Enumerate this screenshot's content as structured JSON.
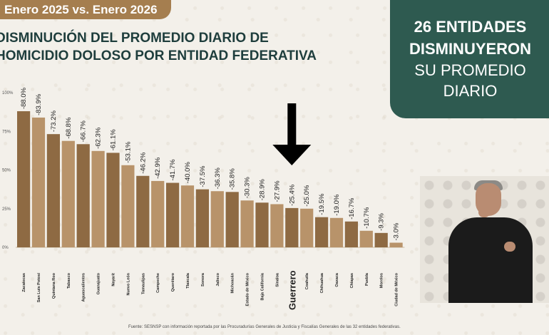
{
  "header": {
    "date_range": "Enero 2025 vs. Enero 2026",
    "title_line1": "DISMINUCIÓN DEL PROMEDIO DIARIO DE",
    "title_line2": "HOMICIDIO DOLOSO POR ENTIDAD FEDERATIVA"
  },
  "callout": {
    "line1": "26 ENTIDADES",
    "line2": "DISMINUYERON",
    "line3": "SU PROMEDIO",
    "line4": "DIARIO"
  },
  "source": "Fuente: SESNSP con información reportada por las Procuradurías Generales de Justicia y Fiscalías Generales de las 32 entidades federativas.",
  "colors": {
    "bar_dark": "#8e6a43",
    "bar_light": "#b8936a",
    "highlight_arrow": "#000000",
    "title": "#1e3d3c",
    "callout_bg": "#2e5a50",
    "date_tab": "#a57e4f"
  },
  "chart_data": {
    "type": "bar",
    "categories": [
      "Zacatecas",
      "San Luis Potosí",
      "Quintana Roo",
      "Tabasco",
      "Aguascalientes",
      "Guanajuato",
      "Nayarit",
      "Nuevo León",
      "Tamaulipas",
      "Campeche",
      "Querétaro",
      "Tlaxcala",
      "Sonora",
      "Jalisco",
      "Michoacán",
      "Estado de México",
      "Baja California",
      "Sinaloa",
      "Guerrero",
      "Coahuila",
      "Chihuahua",
      "Oaxaca",
      "Chiapas",
      "Puebla",
      "Morelos",
      "Ciudad de México"
    ],
    "values": [
      88.0,
      83.9,
      73.2,
      68.8,
      66.7,
      62.3,
      61.1,
      53.1,
      46.2,
      42.9,
      41.7,
      40.0,
      37.5,
      36.3,
      35.8,
      30.3,
      28.9,
      27.9,
      25.4,
      25.0,
      19.5,
      19.0,
      16.7,
      10.7,
      9.3,
      3.0
    ],
    "data_labels": [
      "-88.0%",
      "-83.9%",
      "-73.2%",
      "-68.8%",
      "-66.7%",
      "-62.3%",
      "-61.1%",
      "-53.1%",
      "-46.2%",
      "-42.9%",
      "-41.7%",
      "-40.0%",
      "-37.5%",
      "-36.3%",
      "-35.8%",
      "-30.3%",
      "-28.9%",
      "-27.9%",
      "-25.4%",
      "-25.0%",
      "-19.5%",
      "-19.0%",
      "-16.7%",
      "-10.7%",
      "-9.3%",
      "-3.0%"
    ],
    "y_ticks": [
      "100%",
      "75%",
      "50%",
      "25%",
      "0%"
    ],
    "y_tick_values": [
      100,
      75,
      50,
      25,
      0
    ],
    "ylim": [
      0,
      100
    ],
    "highlight": "Guerrero",
    "grid": false,
    "legend": "none"
  }
}
